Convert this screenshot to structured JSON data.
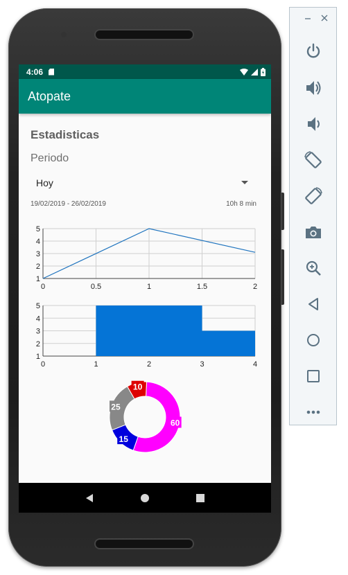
{
  "status_bar": {
    "time": "4:06"
  },
  "app_bar": {
    "title": "Atopate"
  },
  "page": {
    "title": "Estadisticas",
    "period_label": "Periodo",
    "period_selected": "Hoy",
    "date_range": "19/02/2019 - 26/02/2019",
    "total_time": "10h 8 min"
  },
  "chart_data": [
    {
      "type": "line",
      "x": [
        0,
        1,
        2
      ],
      "series": [
        {
          "values": [
            1,
            5,
            3.1
          ]
        }
      ],
      "xticks": [
        "0",
        "0.5",
        "1",
        "1.5",
        "2"
      ],
      "yticks": [
        "1",
        "2",
        "3",
        "4",
        "5"
      ],
      "xlim": [
        0,
        2
      ],
      "ylim": [
        1,
        5
      ],
      "grid": true,
      "color": "#1e73be"
    },
    {
      "type": "bar",
      "bins": [
        [
          1,
          3
        ],
        [
          3,
          4
        ]
      ],
      "values": [
        5,
        3
      ],
      "xticks": [
        "0",
        "1",
        "2",
        "3",
        "4"
      ],
      "yticks": [
        "1",
        "2",
        "3",
        "4",
        "5"
      ],
      "xlim": [
        0,
        4
      ],
      "ylim": [
        1,
        5
      ],
      "grid": true,
      "color": "#0574d6"
    },
    {
      "type": "pie",
      "donut": true,
      "slices": [
        {
          "label": "60",
          "value": 60,
          "color": "#ff00ff"
        },
        {
          "label": "15",
          "value": 15,
          "color": "#0000dd"
        },
        {
          "label": "25",
          "value": 25,
          "color": "#888888"
        },
        {
          "label": "10",
          "value": 10,
          "color": "#dd0000"
        }
      ]
    }
  ],
  "emulator_toolbar": {
    "window_controls": [
      "minimize-icon",
      "close-icon"
    ],
    "tools": [
      "power-icon",
      "volume-up-icon",
      "volume-down-icon",
      "rotate-left-icon",
      "rotate-right-icon",
      "camera-icon",
      "zoom-icon",
      "back-icon",
      "home-icon",
      "overview-icon",
      "more-icon"
    ],
    "accent_color": "#5b7282"
  }
}
